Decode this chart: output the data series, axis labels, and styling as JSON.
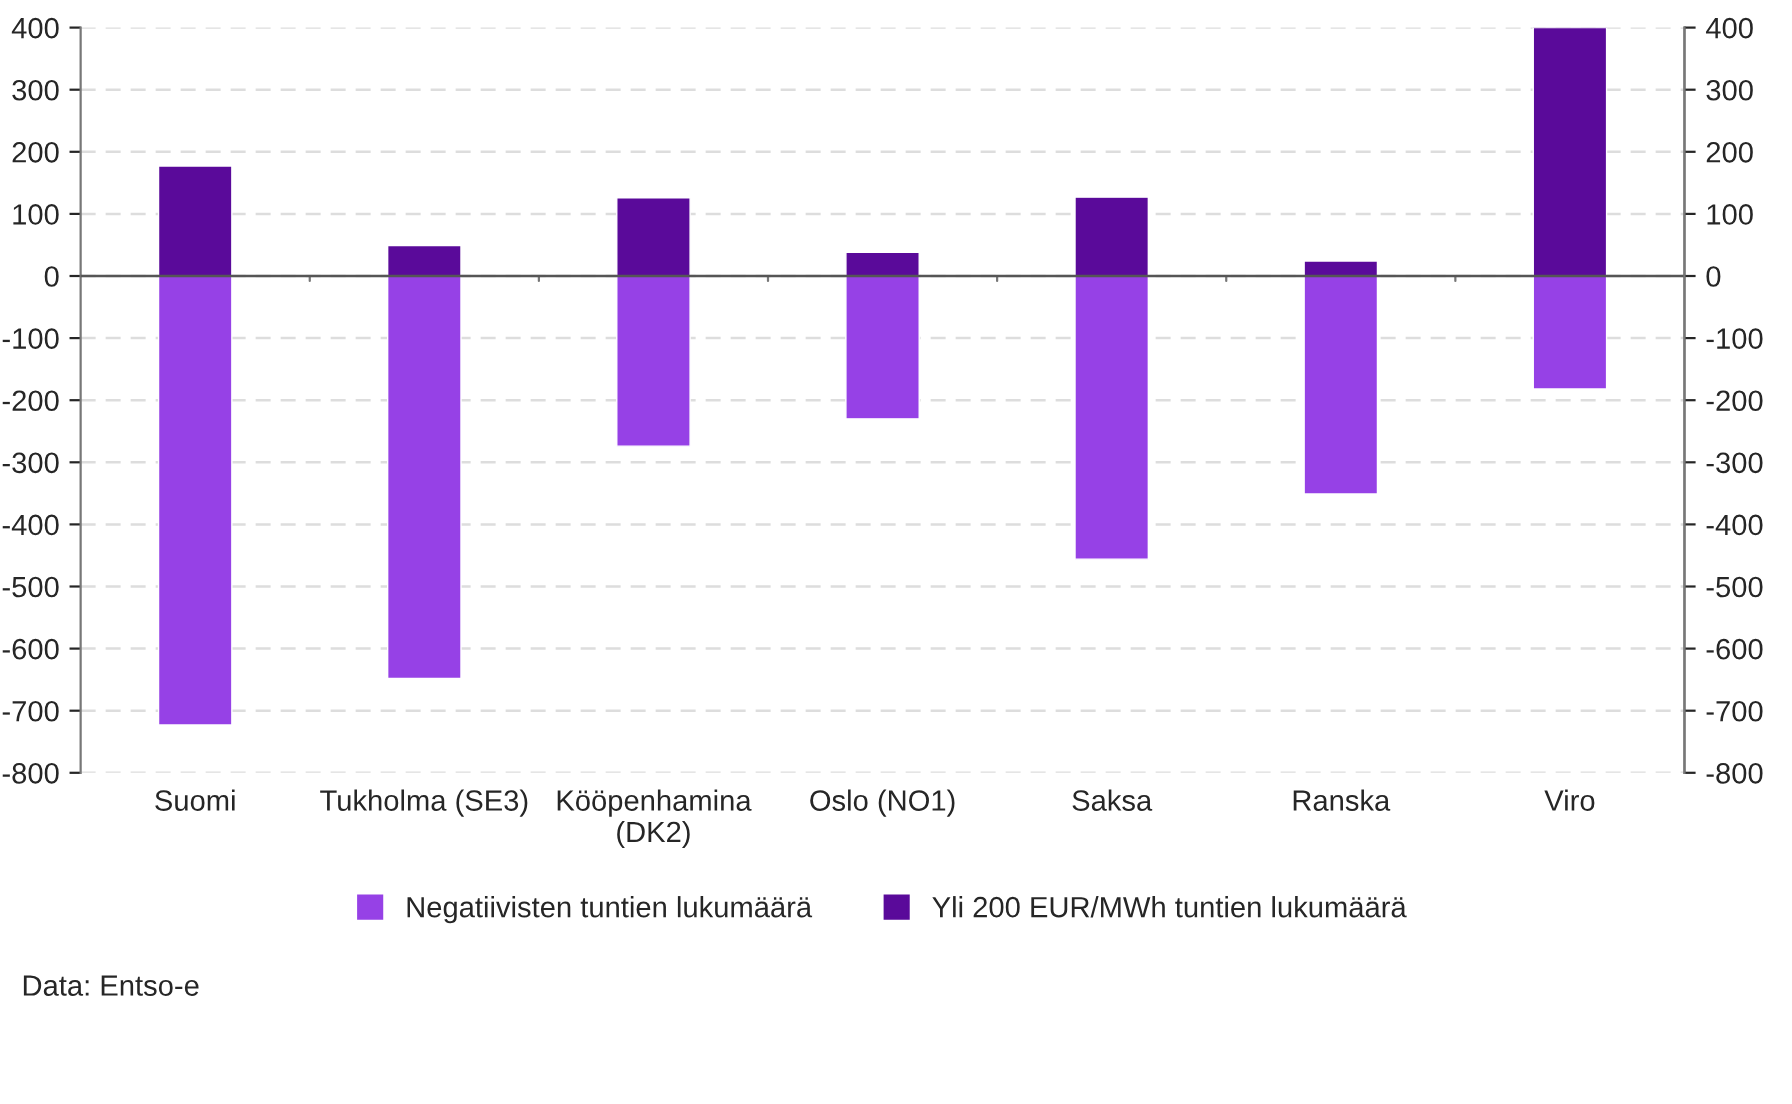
{
  "chart_data": {
    "type": "bar",
    "stacked": true,
    "categories": [
      "Suomi",
      "Tukholma (SE3)",
      "Kööpenhamina\n(DK2)",
      "Oslo (NO1)",
      "Saksa",
      "Ranska",
      "Viro"
    ],
    "series": [
      {
        "name": "Negatiivisten tuntien lukumäärä",
        "color": "#9641e6",
        "values": [
          -723,
          -648,
          -274,
          -230,
          -456,
          -351,
          -182
        ]
      },
      {
        "name": "Yli 200 EUR/MWh tuntien lukumäärä",
        "color": "#5a0a9a",
        "values": [
          177,
          49,
          126,
          38,
          127,
          24,
          400
        ]
      }
    ],
    "ylim": [
      -800,
      400
    ],
    "yticks": [
      -800,
      -700,
      -600,
      -500,
      -400,
      -300,
      -200,
      -100,
      0,
      100,
      200,
      300,
      400
    ],
    "y2lim": [
      -800,
      400
    ],
    "y2ticks": [
      -800,
      -700,
      -600,
      -500,
      -400,
      -300,
      -200,
      -100,
      0,
      100,
      200,
      300,
      400
    ],
    "grid": "y",
    "legend": "bottom",
    "annotations": [
      "Data: Entso-e"
    ]
  }
}
